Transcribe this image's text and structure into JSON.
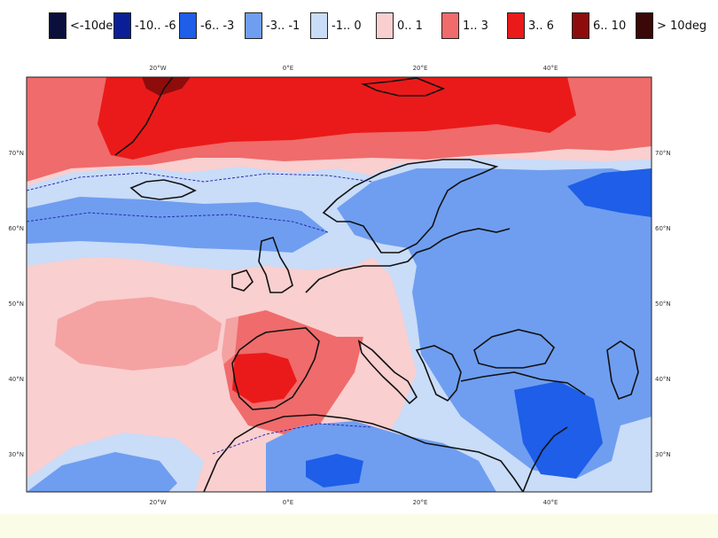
{
  "legend": {
    "items": [
      {
        "label": "<-10deg",
        "color": "#0a0f3c"
      },
      {
        "label": "-10.. -6",
        "color": "#0a1f96"
      },
      {
        "label": "-6.. -3",
        "color": "#1e5ee8"
      },
      {
        "label": "-3.. -1",
        "color": "#6f9ef0"
      },
      {
        "label": "-1.. 0",
        "color": "#c9dcf8"
      },
      {
        "label": "0.. 1",
        "color": "#f9cfd0"
      },
      {
        "label": "1.. 3",
        "color": "#f06b6b"
      },
      {
        "label": "3.. 6",
        "color": "#ea1a1a"
      },
      {
        "label": "6.. 10",
        "color": "#8e0c0c"
      },
      {
        "label": "> 10deg",
        "color": "#3a0808"
      }
    ]
  },
  "map": {
    "lon_ticks": [
      "20°W",
      "0°E",
      "20°E",
      "40°E"
    ],
    "lat_ticks": [
      "70°N",
      "60°N",
      "50°N",
      "40°N",
      "30°N"
    ]
  }
}
